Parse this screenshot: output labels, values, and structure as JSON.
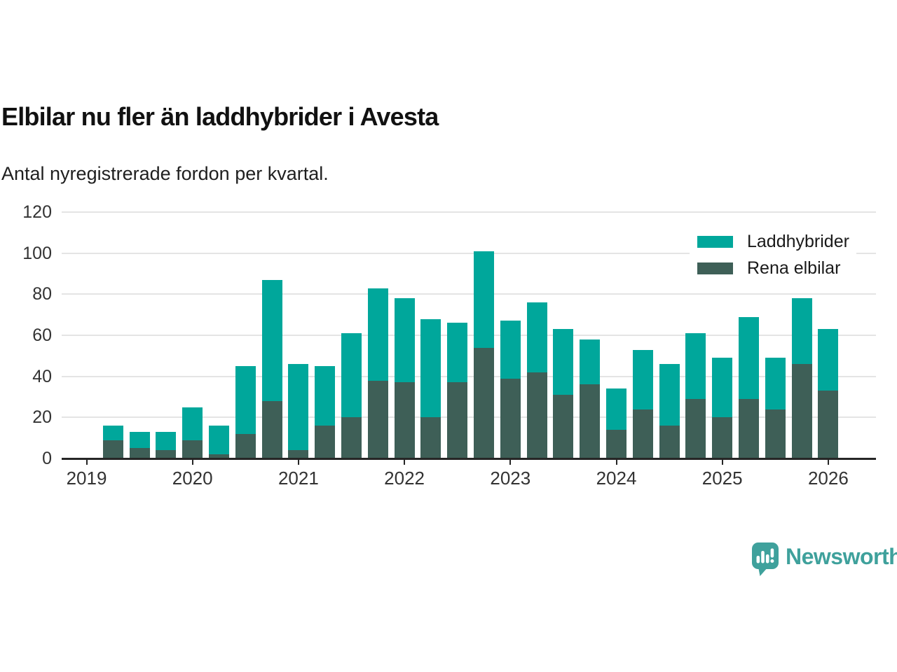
{
  "header": {
    "title": "Elbilar nu fler än laddhybrider i Avesta",
    "subtitle": "Antal nyregistrerade fordon per kvartal."
  },
  "chart_data": {
    "type": "bar",
    "stacked": true,
    "title": "Elbilar nu fler än laddhybrider i Avesta",
    "subtitle": "Antal nyregistrerade fordon per kvartal.",
    "categories": [
      "2019 Q1",
      "2019 Q2",
      "2019 Q3",
      "2019 Q4",
      "2020 Q1",
      "2020 Q2",
      "2020 Q3",
      "2020 Q4",
      "2021 Q1",
      "2021 Q2",
      "2021 Q3",
      "2021 Q4",
      "2022 Q1",
      "2022 Q2",
      "2022 Q3",
      "2022 Q4",
      "2023 Q1",
      "2023 Q2",
      "2023 Q3",
      "2023 Q4",
      "2024 Q1",
      "2024 Q2",
      "2024 Q3",
      "2024 Q4",
      "2025 Q1",
      "2025 Q2",
      "2025 Q3",
      "2025 Q4",
      "2026 Q1"
    ],
    "series": [
      {
        "name": "Rena elbilar",
        "color": "#3e5f57",
        "stack_order": "bottom",
        "values": [
          0,
          9,
          5,
          4,
          9,
          2,
          12,
          28,
          4,
          16,
          20,
          38,
          37,
          20,
          37,
          54,
          39,
          42,
          31,
          36,
          14,
          24,
          16,
          29,
          20,
          29,
          24,
          46,
          33
        ]
      },
      {
        "name": "Laddhybrider",
        "color": "#00a79b",
        "stack_order": "top",
        "values": [
          0,
          7,
          8,
          9,
          16,
          14,
          33,
          59,
          42,
          29,
          41,
          45,
          41,
          48,
          29,
          47,
          28,
          34,
          32,
          22,
          20,
          29,
          30,
          32,
          29,
          40,
          25,
          32,
          30
        ]
      }
    ],
    "stack_totals": [
      0,
      16,
      13,
      13,
      25,
      16,
      45,
      87,
      46,
      45,
      61,
      83,
      78,
      68,
      66,
      101,
      67,
      76,
      63,
      58,
      34,
      53,
      46,
      61,
      49,
      69,
      49,
      78,
      63
    ],
    "ylim": [
      0,
      120
    ],
    "yticks": [
      0,
      20,
      40,
      60,
      80,
      100,
      120
    ],
    "xticks": [
      {
        "label": "2019",
        "category_index": 0
      },
      {
        "label": "2020",
        "category_index": 4
      },
      {
        "label": "2021",
        "category_index": 8
      },
      {
        "label": "2022",
        "category_index": 12
      },
      {
        "label": "2023",
        "category_index": 16
      },
      {
        "label": "2024",
        "category_index": 20
      },
      {
        "label": "2025",
        "category_index": 24
      },
      {
        "label": "2026",
        "category_index": 28
      }
    ],
    "grid": "horizontal",
    "legend_position": "top-right"
  },
  "legend": {
    "items": [
      {
        "label": "Laddhybrider",
        "color": "#00a79b"
      },
      {
        "label": "Rena elbilar",
        "color": "#3e5f57"
      }
    ]
  },
  "footer": {
    "brand": "Newsworthy",
    "brand_color": "#3fa19c",
    "logo_icon": "bar-chart-speech-bubble"
  }
}
